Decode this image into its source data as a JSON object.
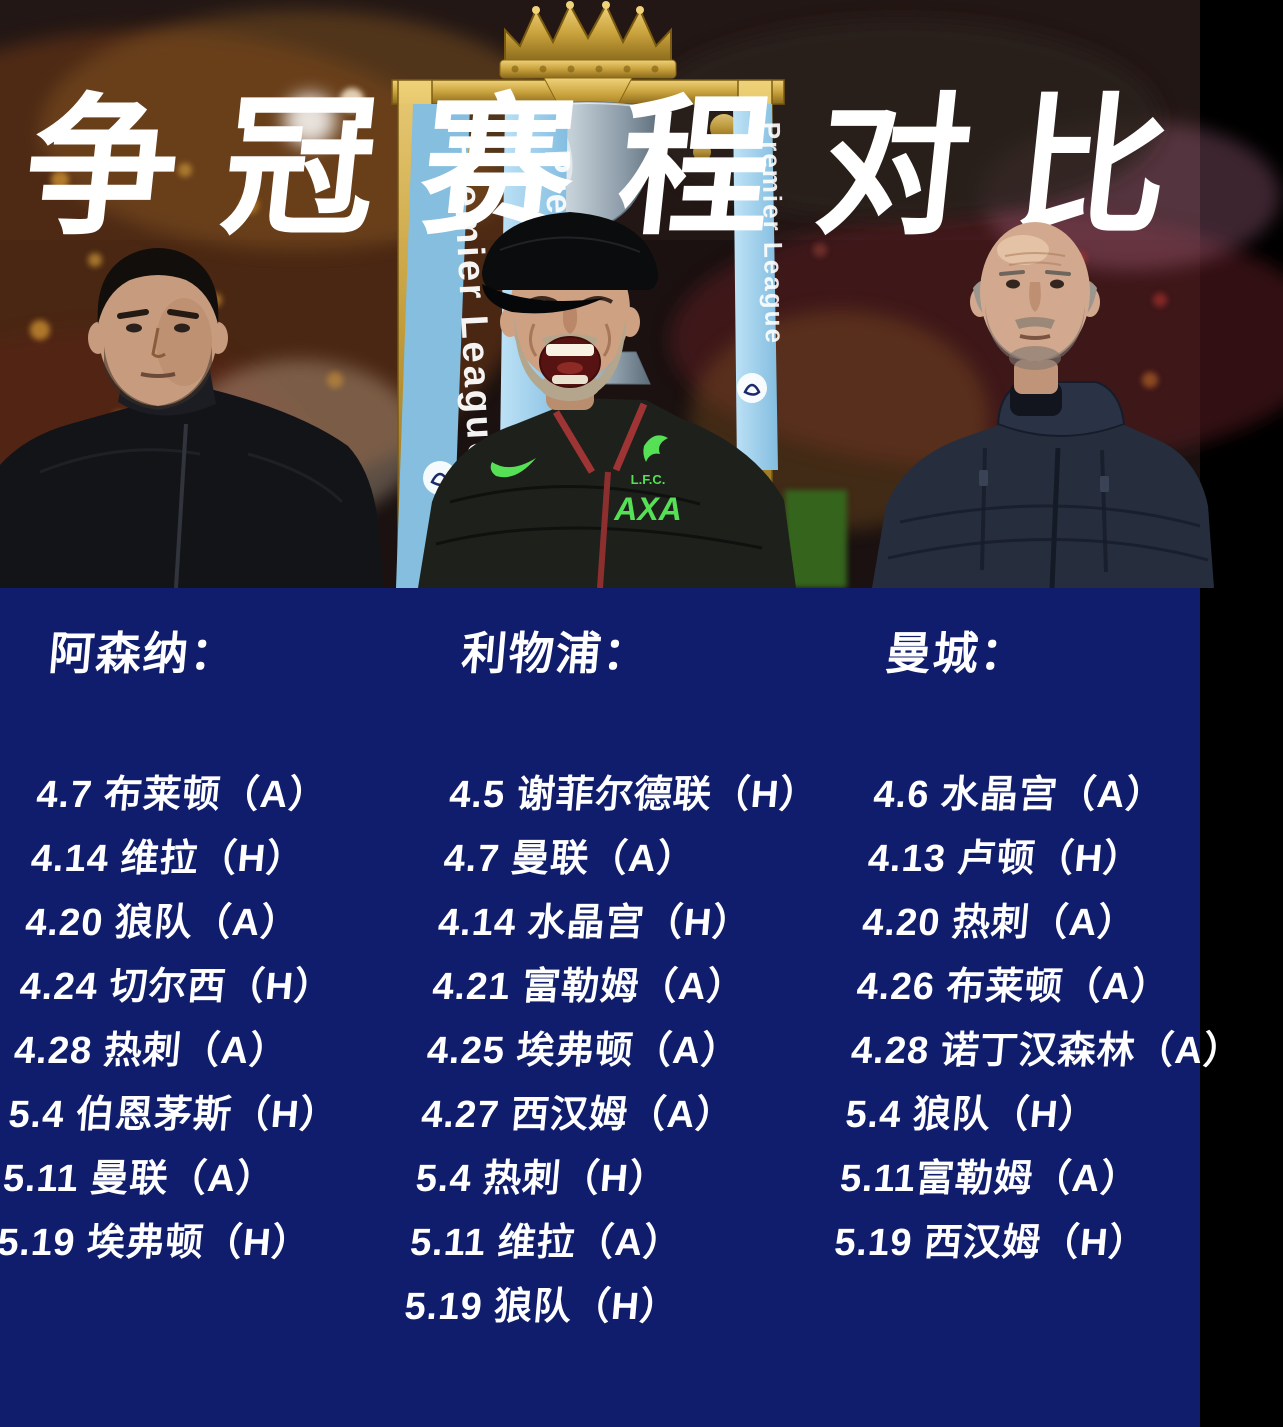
{
  "title": "争冠赛程对比",
  "colors": {
    "panel_bg": "#101d6c",
    "text": "#ffffff",
    "ribbon_blue": "#9fd0ee",
    "trophy_gold": "#c9a23c",
    "lfc_green": "#55e055"
  },
  "photo": {
    "ribbon_text": "Premier League",
    "klopp_jacket": {
      "crest_club": "L.F.C.",
      "sponsor": "AXA"
    }
  },
  "columns": [
    {
      "team": "阿森纳：",
      "fixtures": [
        "4.7 布莱顿（A）",
        "4.14 维拉（H）",
        "4.20 狼队（A）",
        "4.24 切尔西（H）",
        "4.28 热刺（A）",
        "5.4 伯恩茅斯（H）",
        "5.11 曼联（A）",
        "5.19 埃弗顿（H）"
      ]
    },
    {
      "team": "利物浦：",
      "fixtures": [
        "4.5 谢菲尔德联（H）",
        "4.7 曼联（A）",
        "4.14 水晶宫（H）",
        "4.21 富勒姆（A）",
        "4.25 埃弗顿（A）",
        "4.27 西汉姆（A）",
        "5.4 热刺（H）",
        "5.11 维拉（A）",
        "5.19 狼队（H）"
      ]
    },
    {
      "team": "曼城：",
      "fixtures": [
        "4.6 水晶宫（A）",
        "4.13 卢顿（H）",
        "4.20 热刺（A）",
        "4.26 布莱顿（A）",
        "4.28 诺丁汉森林（A）",
        "5.4 狼队（H）",
        "5.11富勒姆（A）",
        "5.19 西汉姆（H）"
      ]
    }
  ]
}
